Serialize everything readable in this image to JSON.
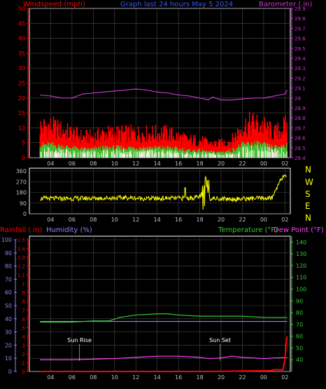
{
  "colors": {
    "background": "#000000",
    "frame": "#ffffff",
    "grid": "#4a4a4a",
    "axis_labels": "#c0c0c0",
    "windspeed": "#ff0000",
    "barometer": "#cc33cc",
    "title": "#3355ff",
    "direction": "#ffff00",
    "rainfall": "#ff0000",
    "humidity": "#8888ff",
    "temperature": "#33cc33",
    "dew_point": "#ff44ff",
    "solar": "#ffffff"
  },
  "top_panel": {
    "title": "Graph last 24 hours May 5 2024",
    "windspeed_label": "Windspeed (mph)",
    "barometer_label": "Barometer (.in)"
  },
  "direction_panel": {
    "compass": [
      "N",
      "W",
      "S",
      "E",
      "N"
    ]
  },
  "bottom_panel": {
    "rainfall_label": "Rainfall (.in)",
    "humidity_label": "Humidity (%)",
    "temperature_label": "Temperature (°F)",
    "dewpoint_label": "Dew Point (°F)",
    "sunrise_label": "Sun Rise",
    "sunset_label": "Sun Set"
  },
  "chart_data": [
    {
      "type": "line",
      "title": "Graph last 24 hours May 5 2024",
      "x_ticks": [
        "04",
        "06",
        "08",
        "10",
        "12",
        "14",
        "16",
        "18",
        "20",
        "22",
        "00",
        "02"
      ],
      "y_left": {
        "label": "Windspeed (mph)",
        "lim": [
          0,
          50
        ],
        "ticks": [
          0,
          5,
          10,
          15,
          20,
          25,
          30,
          35,
          40,
          45,
          50
        ]
      },
      "y_right": {
        "label": "Barometer (.in)",
        "lim": [
          28.4,
          29.9
        ],
        "ticks": [
          "28.4",
          "28.5",
          "28.6",
          "28.7",
          "28.8",
          "28.9",
          "29",
          "29.1",
          "29.2",
          "29.3",
          "29.4",
          "29.5",
          "29.6",
          "29.7",
          "29.8",
          "29.9"
        ]
      },
      "series": [
        {
          "name": "Windspeed (mph)",
          "axis": "left",
          "kind": "gust-band",
          "hours": [
            3,
            4,
            5,
            6,
            7,
            8,
            9,
            10,
            11,
            12,
            13,
            14,
            15,
            16,
            17,
            18,
            19,
            20,
            21,
            22,
            23,
            24,
            25,
            26
          ],
          "values": [
            9,
            9,
            8,
            7,
            6,
            6,
            7,
            7,
            7,
            7,
            7,
            7,
            7,
            6,
            5,
            5,
            4,
            4,
            5,
            9,
            10,
            9,
            7,
            9
          ]
        },
        {
          "name": "Barometer (.in)",
          "axis": "right",
          "hours": [
            3,
            4,
            5,
            6,
            7,
            8,
            9,
            10,
            11,
            12,
            13,
            14,
            15,
            16,
            17,
            18,
            18.8,
            19.2,
            20,
            21,
            22,
            23,
            24,
            25,
            26,
            26.2
          ],
          "values": [
            29.03,
            29.02,
            29.0,
            29.0,
            29.04,
            29.05,
            29.06,
            29.07,
            29.08,
            29.09,
            29.08,
            29.06,
            29.05,
            29.03,
            29.02,
            29.0,
            28.98,
            29.01,
            28.98,
            28.98,
            28.99,
            29.0,
            29.0,
            29.02,
            29.04,
            29.08
          ]
        }
      ]
    },
    {
      "type": "scatter",
      "title": "",
      "x_ticks": [
        "04",
        "06",
        "08",
        "10",
        "12",
        "14",
        "16",
        "18",
        "20",
        "22",
        "00",
        "02"
      ],
      "y_left": {
        "label": "",
        "lim": [
          0,
          360
        ],
        "ticks": [
          0,
          90,
          180,
          270,
          360
        ]
      },
      "y_right": {
        "label": "",
        "ticks": [
          "N",
          "W",
          "S",
          "E",
          "N"
        ]
      },
      "series": [
        {
          "name": "Wind direction",
          "hours": [
            3,
            5,
            7,
            9,
            11,
            13,
            15,
            17,
            17.9,
            18.5,
            19,
            21,
            23,
            24.8,
            25.6,
            26.2
          ],
          "values": [
            130,
            128,
            130,
            132,
            135,
            128,
            130,
            132,
            140,
            180,
            130,
            125,
            128,
            132,
            300,
            310
          ]
        }
      ]
    },
    {
      "type": "line",
      "title": "",
      "x_ticks": [
        "04",
        "06",
        "08",
        "10",
        "12",
        "14",
        "16",
        "18",
        "20",
        "22",
        "00",
        "02"
      ],
      "y_left_rain": {
        "label": "Rainfall (.in)",
        "lim": [
          0,
          1.5
        ],
        "ticks": [
          "0",
          ".1",
          ".2",
          ".3",
          ".4",
          ".5",
          ".6",
          ".7",
          ".8",
          ".9",
          "1",
          "1.1",
          "1.2",
          "1.3",
          "1.4",
          "1.5"
        ]
      },
      "y_left_humidity": {
        "label": "Humidity (%)",
        "lim": [
          0,
          100
        ],
        "ticks": [
          0,
          10,
          20,
          30,
          40,
          50,
          60,
          70,
          80,
          90,
          100
        ]
      },
      "y_right": {
        "label": "Temperature (°F) Dew Point (°F)",
        "lim": [
          30,
          145
        ],
        "ticks": [
          40,
          50,
          60,
          70,
          80,
          90,
          100,
          110,
          120,
          130,
          140
        ]
      },
      "annotations": [
        {
          "text": "Sun Rise",
          "hour": 6.7
        },
        {
          "text": "Sun Set",
          "hour": 19.9
        }
      ],
      "series": [
        {
          "name": "Humidity (%)",
          "axis": "humidity",
          "hours": [
            3,
            26.2
          ],
          "values": [
            38,
            38
          ]
        },
        {
          "name": "Temperature (°F)",
          "axis": "right",
          "hours": [
            3,
            6,
            8,
            9.5,
            10.5,
            12,
            14,
            15,
            16,
            18,
            20,
            22,
            24,
            25.5,
            26.2
          ],
          "values": [
            72,
            72,
            73,
            73,
            76,
            78,
            79,
            79,
            78,
            77,
            77,
            77,
            76,
            76,
            76
          ]
        },
        {
          "name": "Dew Point (°F)",
          "axis": "right",
          "hours": [
            3,
            6,
            8,
            10,
            12,
            14,
            15,
            16,
            18,
            18.8,
            20,
            21,
            22,
            24,
            26.2
          ],
          "values": [
            40,
            40,
            40.5,
            41,
            42,
            43,
            43,
            43,
            42,
            41,
            41.5,
            43,
            42,
            41,
            42
          ]
        },
        {
          "name": "Rainfall (.in)",
          "axis": "rain",
          "hours": [
            3,
            18.5,
            24.7,
            25.0,
            25.8,
            26.0,
            26.1,
            26.2
          ],
          "values": [
            0,
            0,
            0.01,
            0.02,
            0.02,
            0.15,
            0.3,
            0.4
          ]
        }
      ]
    }
  ]
}
